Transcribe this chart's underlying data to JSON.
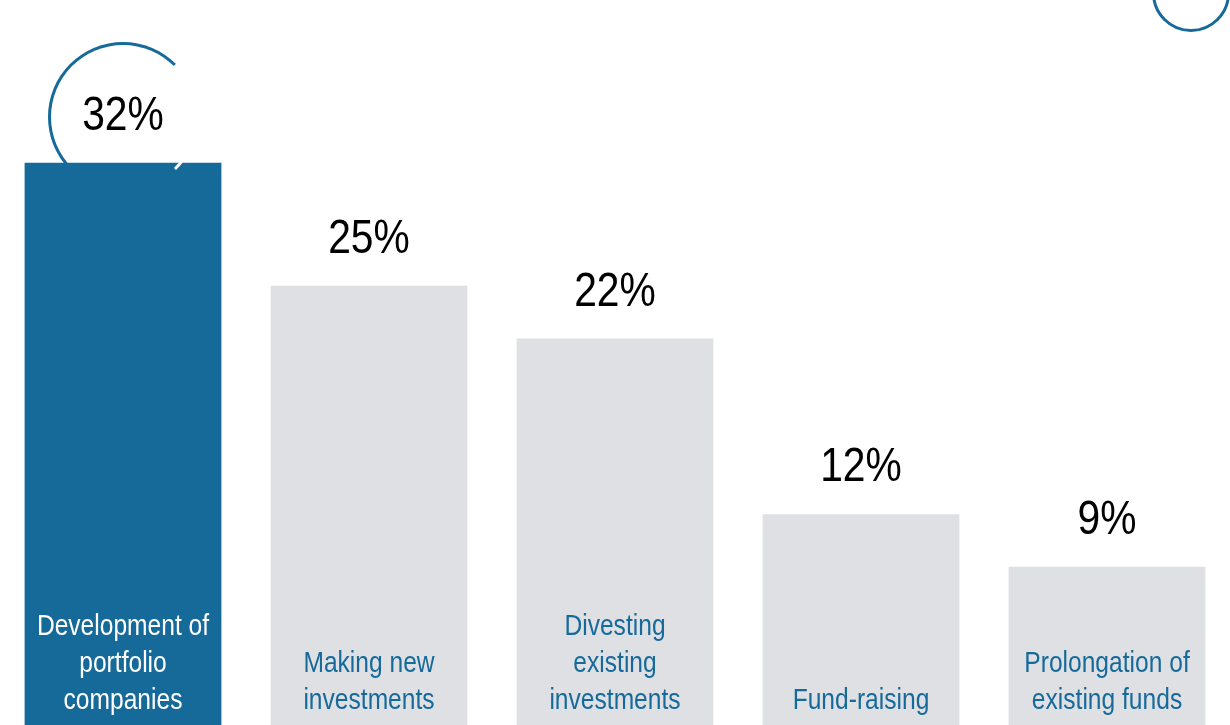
{
  "chart_data": {
    "type": "bar",
    "categories": [
      "Development of portfolio companies",
      "Making new investments",
      "Divesting existing investments",
      "Fund-raising",
      "Prolongation of existing funds"
    ],
    "values": [
      32,
      25,
      22,
      12,
      9
    ],
    "colors": [
      "#166a9a",
      "#dfe0e4",
      "#dfe0e4",
      "#dfe0e4",
      "#dfe0e4"
    ],
    "value_labels": [
      "32%",
      "25%",
      "22%",
      "12%",
      "9%"
    ],
    "legend": false
  }
}
